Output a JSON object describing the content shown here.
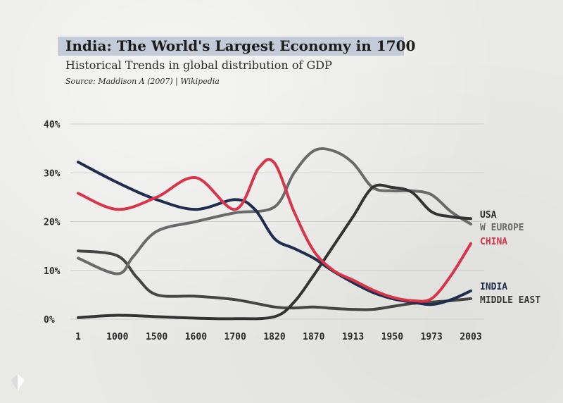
{
  "title": "India: The World's Largest Economy in 1700",
  "subtitle": "Historical Trends in global distribution of GDP",
  "source": "Source: Maddison A (2007) | Wikipedia",
  "colors": {
    "china": "#d8344a",
    "usa": "#333333",
    "w_europe": "#6a6a6a",
    "india": "#1f2d4e",
    "middle_east": "#454545",
    "grid": "#cfcfcf",
    "title_bg": "#c3cad8"
  },
  "chart_data": {
    "type": "line",
    "title": "India: The World's Largest Economy in 1700",
    "subtitle": "Historical Trends in global distribution of GDP",
    "categories": [
      "1",
      "1000",
      "1500",
      "1600",
      "1700",
      "1820",
      "1870",
      "1913",
      "1950",
      "1973",
      "2003"
    ],
    "ylim": [
      0,
      40
    ],
    "yticks": [
      "0%",
      "10%",
      "20%",
      "30%",
      "40%"
    ],
    "grid": true,
    "series": [
      {
        "name": "USA",
        "color_key": "usa",
        "x": [
          0,
          1,
          2,
          3,
          4,
          5,
          5.5,
          6,
          6.5,
          7,
          7.5,
          8,
          8.5,
          9,
          9.5,
          10
        ],
        "values": [
          0.3,
          0.8,
          0.5,
          0.2,
          0.1,
          0.5,
          3.5,
          9,
          15,
          21,
          27,
          27,
          26,
          22,
          21,
          20.6
        ]
      },
      {
        "name": "W EUROPE",
        "color_key": "w_europe",
        "x": [
          0,
          1,
          1.4,
          2,
          3,
          4,
          5,
          5.5,
          6,
          6.5,
          7,
          7.5,
          8,
          8.5,
          9,
          9.5,
          10
        ],
        "values": [
          12.5,
          9.3,
          12.8,
          18,
          20,
          21.8,
          23,
          30,
          34.5,
          34.5,
          32,
          27,
          26.3,
          26.3,
          25.5,
          22,
          19.5
        ]
      },
      {
        "name": "CHINA",
        "color_key": "china",
        "x": [
          0,
          1,
          2,
          3,
          4,
          4.6,
          5,
          5.5,
          6,
          6.5,
          7,
          7.5,
          8,
          8.5,
          9,
          9.5,
          10
        ],
        "values": [
          25.8,
          22.5,
          25,
          29,
          22.5,
          31,
          32,
          22,
          14,
          10,
          8,
          6,
          4.5,
          3.8,
          4.2,
          9,
          15.5
        ]
      },
      {
        "name": "INDIA",
        "color_key": "india",
        "x": [
          0,
          1,
          2,
          3,
          4,
          4.5,
          5,
          5.5,
          6,
          6.5,
          7,
          7.5,
          8,
          8.5,
          9,
          9.5,
          10
        ],
        "values": [
          32.2,
          28,
          24.5,
          22.5,
          24.5,
          22.5,
          16.5,
          14.5,
          12.5,
          9.8,
          7.5,
          5.5,
          4.2,
          3.5,
          3.0,
          4.0,
          5.8
        ]
      },
      {
        "name": "MIDDLE EAST",
        "color_key": "middle_east",
        "x": [
          0,
          1,
          1.5,
          2,
          3,
          4,
          5,
          5.5,
          6,
          6.5,
          7,
          7.5,
          8,
          8.5,
          9,
          9.5,
          10
        ],
        "values": [
          14,
          13,
          8.5,
          5,
          4.7,
          4,
          2.5,
          2.3,
          2.5,
          2.2,
          2,
          2,
          2.6,
          3.2,
          3.5,
          3.8,
          4.2
        ]
      }
    ],
    "legend_labels": [
      "USA",
      "W EUROPE",
      "CHINA",
      "INDIA",
      "MIDDLE EAST"
    ]
  }
}
